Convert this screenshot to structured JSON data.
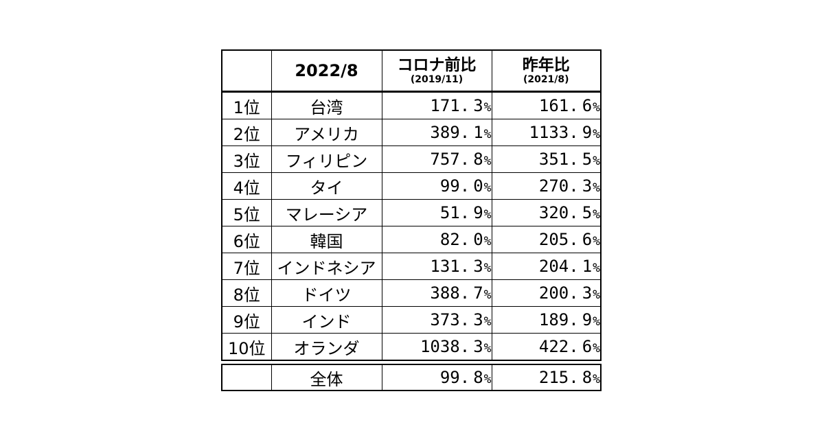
{
  "colors": {
    "background": "#ffffff",
    "border": "#000000",
    "text": "#000000"
  },
  "chart_data": {
    "type": "table",
    "title": "",
    "columns": [
      {
        "label": ""
      },
      {
        "label": "2022/8"
      },
      {
        "label": "コロナ前比",
        "sub": "(2019/11)"
      },
      {
        "label": "昨年比",
        "sub": "(2021/8)"
      }
    ],
    "rows": [
      {
        "rank": "1位",
        "name": "台湾",
        "vs_precovid": "171.3%",
        "vs_lastyear": "161.6%"
      },
      {
        "rank": "2位",
        "name": "アメリカ",
        "vs_precovid": "389.1%",
        "vs_lastyear": "1133.9%"
      },
      {
        "rank": "3位",
        "name": "フィリピン",
        "vs_precovid": "757.8%",
        "vs_lastyear": "351.5%"
      },
      {
        "rank": "4位",
        "name": "タイ",
        "vs_precovid": "99.0%",
        "vs_lastyear": "270.3%"
      },
      {
        "rank": "5位",
        "name": "マレーシア",
        "vs_precovid": "51.9%",
        "vs_lastyear": "320.5%"
      },
      {
        "rank": "6位",
        "name": "韓国",
        "vs_precovid": "82.0%",
        "vs_lastyear": "205.6%"
      },
      {
        "rank": "7位",
        "name": "インドネシア",
        "vs_precovid": "131.3%",
        "vs_lastyear": "204.1%"
      },
      {
        "rank": "8位",
        "name": "ドイツ",
        "vs_precovid": "388.7%",
        "vs_lastyear": "200.3%"
      },
      {
        "rank": "9位",
        "name": "インド",
        "vs_precovid": "373.3%",
        "vs_lastyear": "189.9%"
      },
      {
        "rank": "10位",
        "name": "オランダ",
        "vs_precovid": "1038.3%",
        "vs_lastyear": "422.6%"
      }
    ],
    "total": {
      "rank": "",
      "name": "全体",
      "vs_precovid": "99.8%",
      "vs_lastyear": "215.8%"
    }
  }
}
